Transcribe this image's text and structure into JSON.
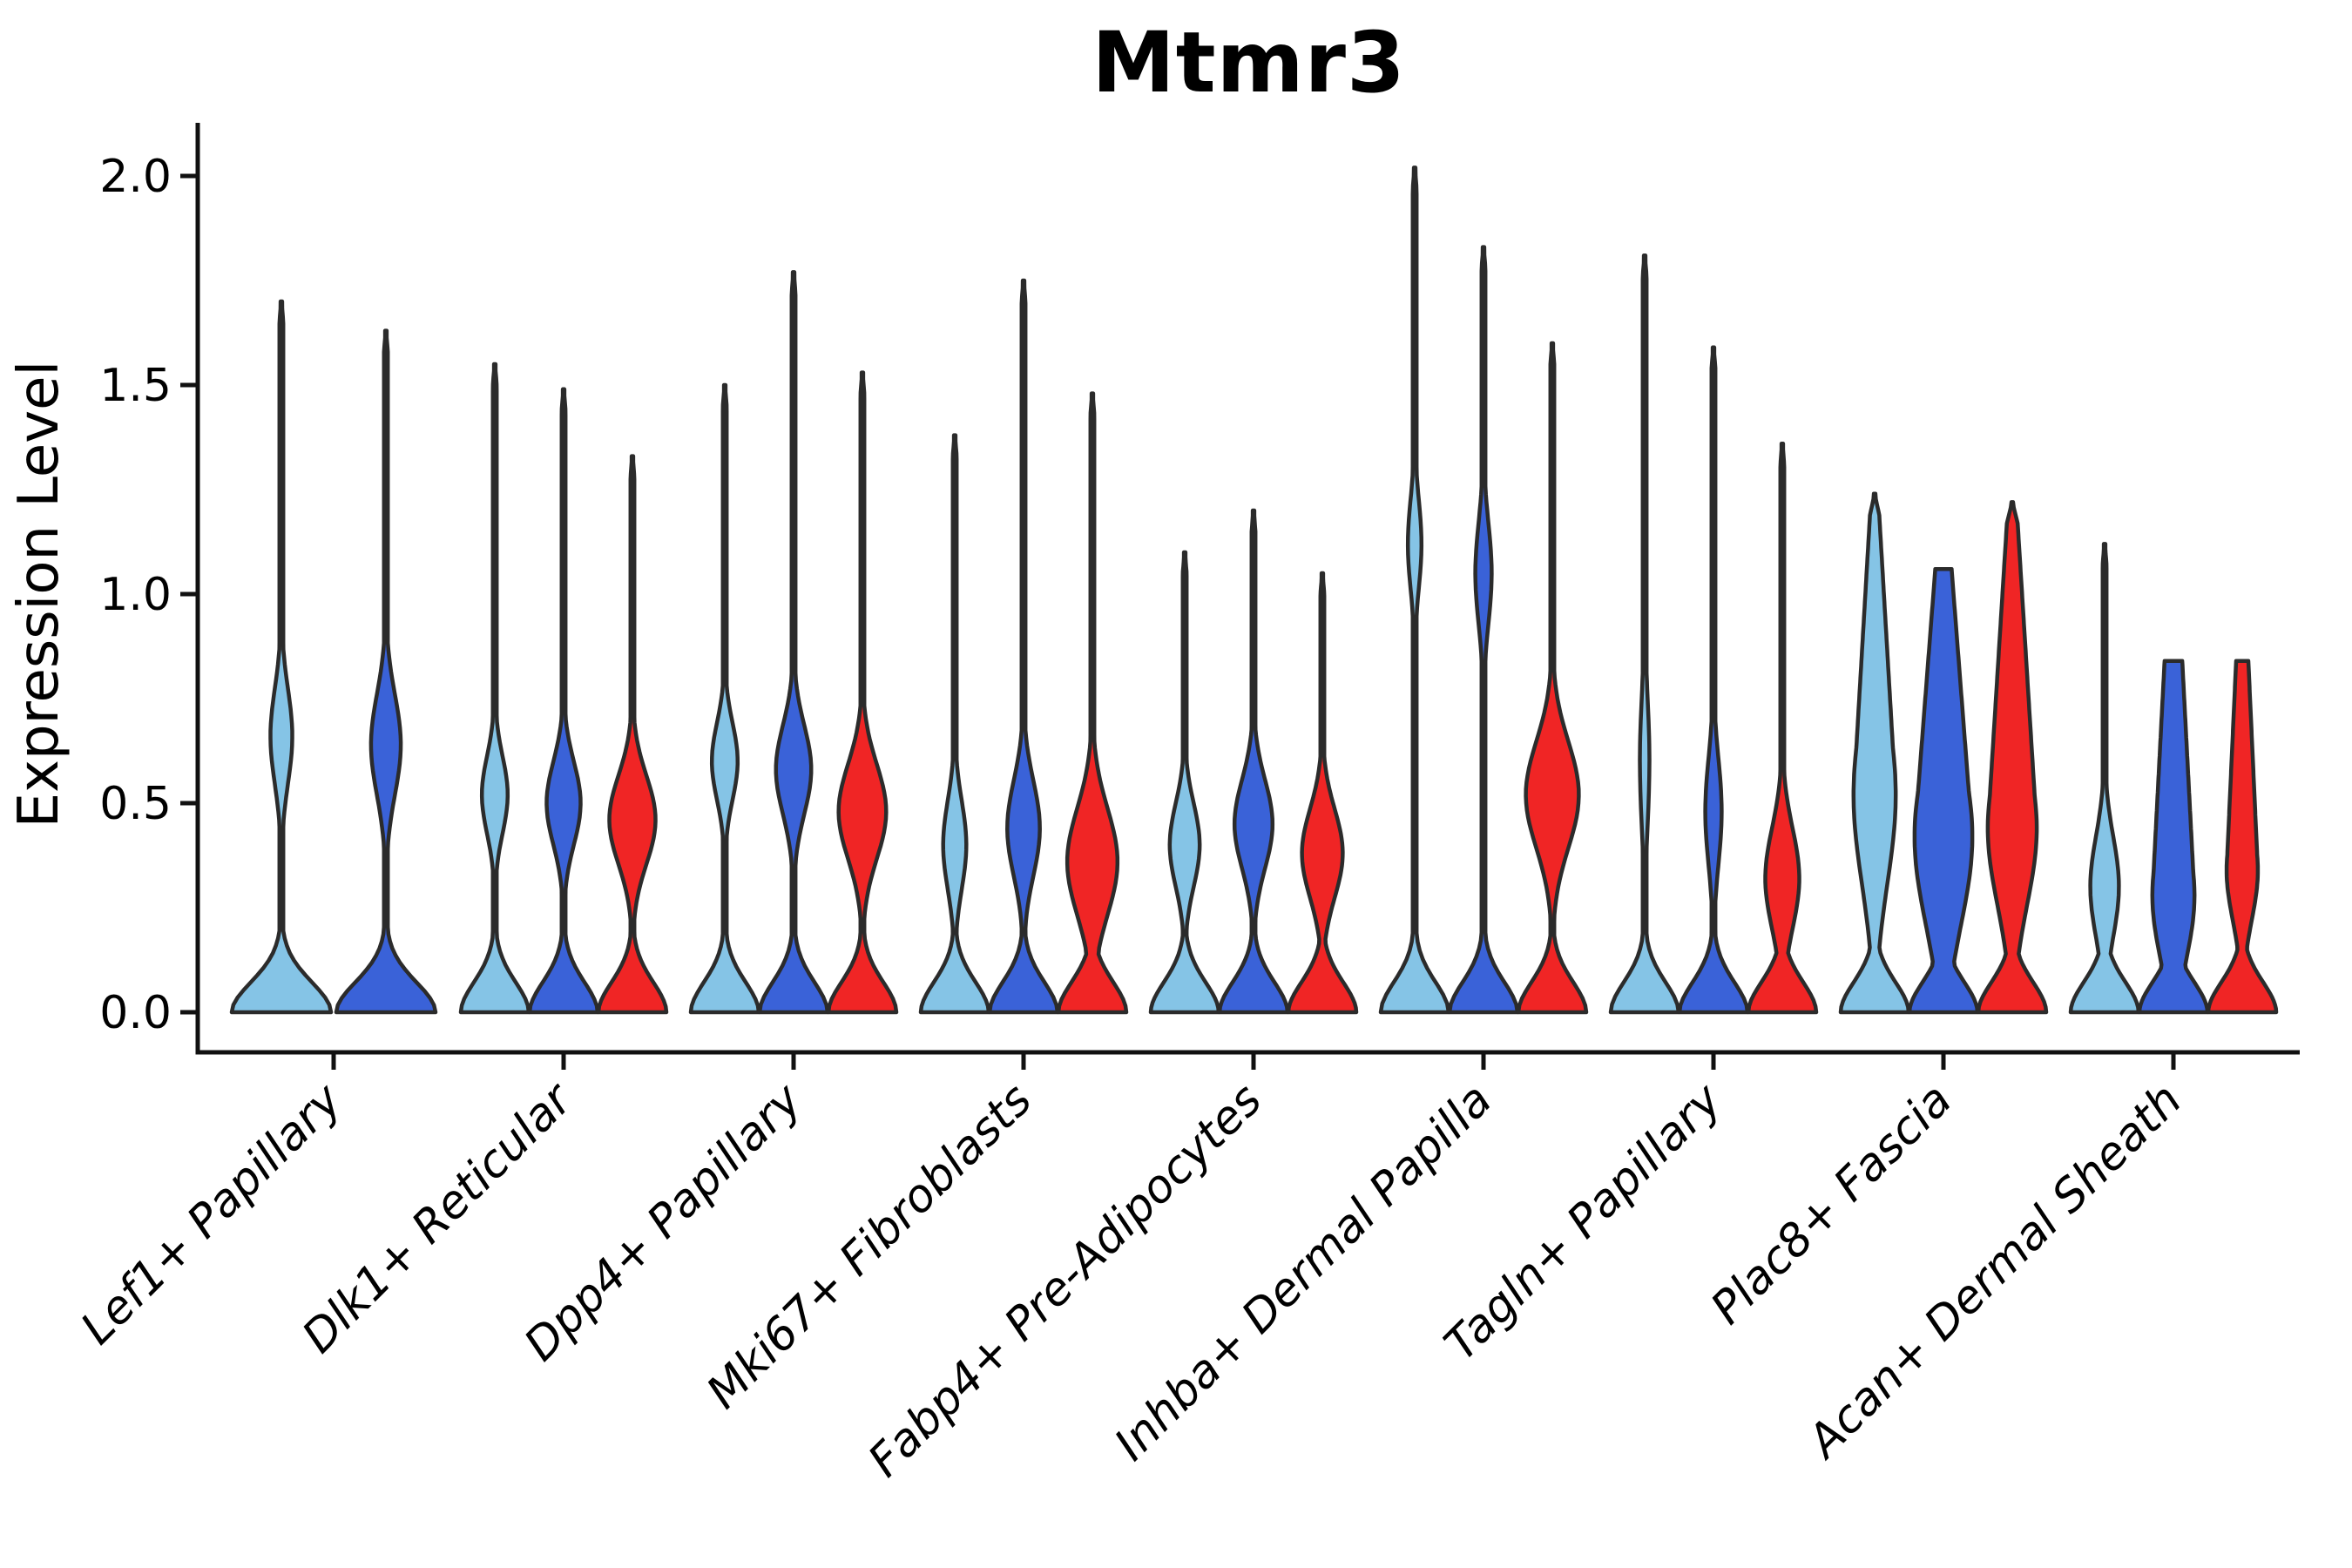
{
  "chart_data": {
    "type": "violin",
    "title": "Mtmr3",
    "ylabel": "Expression Level",
    "xlabel": "",
    "ylim": [
      0,
      2.125
    ],
    "yticks": [
      "0.0",
      "0.5",
      "1.0",
      "1.5",
      "2.0"
    ],
    "ytick_values": [
      0.0,
      0.5,
      1.0,
      1.5,
      2.0
    ],
    "grid": false,
    "legend_position": "none",
    "x_labels_rotation_deg": 45,
    "categories": [
      "Lef1+ Papillary",
      "Dlk1+ Reticular",
      "Dpp4+ Papillary",
      "Mki67+ Fibroblasts",
      "Fabp4+ Pre-Adipocytes",
      "Inhba+ Dermal Papilla",
      "Tagln+ Papillary",
      "Plac8+ Fascia",
      "Acan+ Dermal Sheath"
    ],
    "palette": {
      "split_light_blue": "#85C4E6",
      "split_royal_blue": "#3A62D8",
      "split_red": "#F02525",
      "violin_outline": "#2B2B2B",
      "axis_color": "#111111",
      "background": "#FFFFFF",
      "text_color": "#000000"
    },
    "groups": [
      {
        "category": "Lef1+ Papillary",
        "violins": [
          {
            "split": "split_light_blue",
            "max": 1.7,
            "bulge_center": 0.66,
            "bulge_sigma": 0.16,
            "bulge_rel_width": 0.22
          },
          {
            "split": "split_royal_blue",
            "max": 1.63,
            "bulge_center": 0.64,
            "bulge_sigma": 0.17,
            "bulge_rel_width": 0.3
          }
        ]
      },
      {
        "category": "Dlk1+ Reticular",
        "violins": [
          {
            "split": "split_light_blue",
            "max": 1.55,
            "bulge_center": 0.52,
            "bulge_sigma": 0.13,
            "bulge_rel_width": 0.38
          },
          {
            "split": "split_royal_blue",
            "max": 1.49,
            "bulge_center": 0.5,
            "bulge_sigma": 0.14,
            "bulge_rel_width": 0.5
          },
          {
            "split": "split_red",
            "max": 1.33,
            "bulge_center": 0.46,
            "bulge_sigma": 0.15,
            "bulge_rel_width": 0.68
          }
        ]
      },
      {
        "category": "Dpp4+ Papillary",
        "violins": [
          {
            "split": "split_light_blue",
            "max": 1.5,
            "bulge_center": 0.6,
            "bulge_sigma": 0.13,
            "bulge_rel_width": 0.38
          },
          {
            "split": "split_royal_blue",
            "max": 1.77,
            "bulge_center": 0.58,
            "bulge_sigma": 0.15,
            "bulge_rel_width": 0.52
          },
          {
            "split": "split_red",
            "max": 1.53,
            "bulge_center": 0.48,
            "bulge_sigma": 0.16,
            "bulge_rel_width": 0.7
          }
        ]
      },
      {
        "category": "Mki67+ Fibroblasts",
        "violins": [
          {
            "split": "split_light_blue",
            "max": 1.38,
            "bulge_center": 0.4,
            "bulge_sigma": 0.15,
            "bulge_rel_width": 0.34
          },
          {
            "split": "split_royal_blue",
            "max": 1.75,
            "bulge_center": 0.44,
            "bulge_sigma": 0.16,
            "bulge_rel_width": 0.48
          },
          {
            "split": "split_red",
            "max": 1.48,
            "bulge_center": 0.36,
            "bulge_sigma": 0.18,
            "bulge_rel_width": 0.74
          }
        ]
      },
      {
        "category": "Fabp4+ Pre-Adipocytes",
        "violins": [
          {
            "split": "split_light_blue",
            "max": 1.1,
            "bulge_center": 0.4,
            "bulge_sigma": 0.14,
            "bulge_rel_width": 0.44
          },
          {
            "split": "split_royal_blue",
            "max": 1.2,
            "bulge_center": 0.45,
            "bulge_sigma": 0.15,
            "bulge_rel_width": 0.56
          },
          {
            "split": "split_red",
            "max": 1.05,
            "bulge_center": 0.38,
            "bulge_sigma": 0.15,
            "bulge_rel_width": 0.6
          }
        ]
      },
      {
        "category": "Inhba+ Dermal Papilla",
        "violins": [
          {
            "split": "split_light_blue",
            "max": 2.02,
            "bulge_center": 1.12,
            "bulge_sigma": 0.15,
            "bulge_rel_width": 0.2
          },
          {
            "split": "split_royal_blue",
            "max": 1.83,
            "bulge_center": 1.05,
            "bulge_sigma": 0.17,
            "bulge_rel_width": 0.24
          },
          {
            "split": "split_red",
            "max": 1.6,
            "bulge_center": 0.52,
            "bulge_sigma": 0.18,
            "bulge_rel_width": 0.78
          }
        ]
      },
      {
        "category": "Tagln+ Papillary",
        "violins": [
          {
            "split": "split_light_blue",
            "max": 1.81,
            "bulge_center": 0.6,
            "bulge_sigma": 0.22,
            "bulge_rel_width": 0.14
          },
          {
            "split": "split_royal_blue",
            "max": 1.59,
            "bulge_center": 0.48,
            "bulge_sigma": 0.18,
            "bulge_rel_width": 0.24
          },
          {
            "split": "split_red",
            "max": 1.36,
            "bulge_center": 0.32,
            "bulge_sigma": 0.17,
            "bulge_rel_width": 0.5
          }
        ]
      },
      {
        "category": "Plac8+ Fascia",
        "violins": [
          {
            "split": "split_light_blue",
            "max": 1.24,
            "bulge_center": 0.52,
            "bulge_sigma": 0.3,
            "bulge_rel_width": 0.62,
            "cone_tip_rel": 0.1
          },
          {
            "split": "split_royal_blue",
            "max": 1.06,
            "bulge_center": 0.42,
            "bulge_sigma": 0.3,
            "bulge_rel_width": 0.85,
            "cone_tip_rel": 0.24,
            "flat_top": true
          },
          {
            "split": "split_red",
            "max": 1.22,
            "bulge_center": 0.44,
            "bulge_sigma": 0.26,
            "bulge_rel_width": 0.72,
            "cone_tip_rel": 0.12
          }
        ]
      },
      {
        "category": "Acan+ Dermal Sheath",
        "violins": [
          {
            "split": "split_light_blue",
            "max": 1.12,
            "bulge_center": 0.3,
            "bulge_sigma": 0.17,
            "bulge_rel_width": 0.42
          },
          {
            "split": "split_royal_blue",
            "max": 0.84,
            "bulge_center": 0.28,
            "bulge_sigma": 0.22,
            "bulge_rel_width": 0.62,
            "cone_tip_rel": 0.26,
            "flat_top": true
          },
          {
            "split": "split_red",
            "max": 0.84,
            "bulge_center": 0.34,
            "bulge_sigma": 0.17,
            "bulge_rel_width": 0.46,
            "cone_tip_rel": 0.18,
            "flat_top": true
          }
        ]
      }
    ]
  }
}
